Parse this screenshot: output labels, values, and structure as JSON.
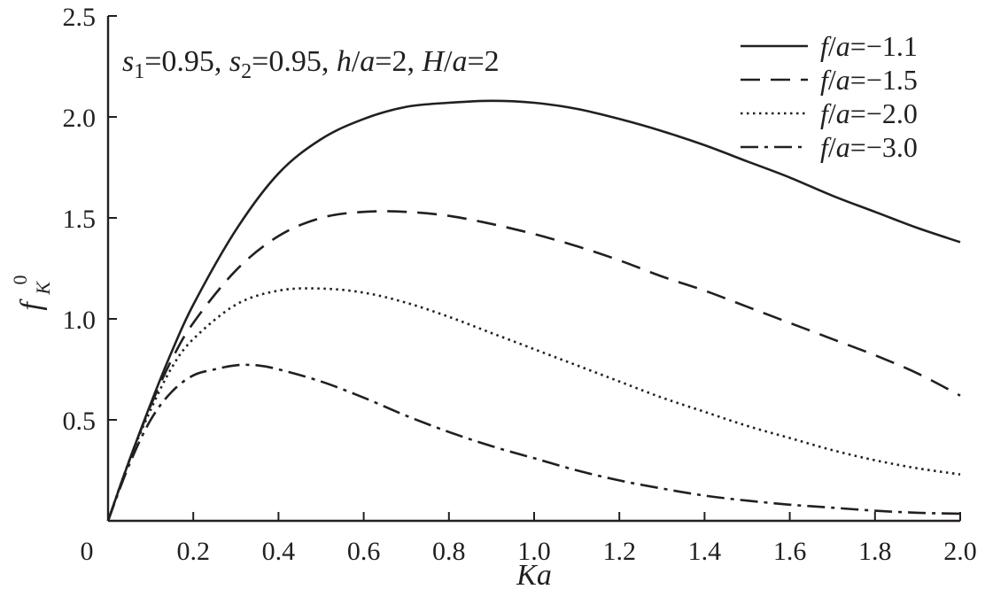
{
  "chart_data": {
    "type": "line",
    "xlabel": "Ka",
    "ylabel_main": "f",
    "ylabel_sub": "K",
    "ylabel_sup": "0",
    "annotation": "s1=0.95, s2=0.95, h/a=2, H/a=2",
    "annotation_parts": {
      "s1_main": "s",
      "s1_sub": "1",
      "s1_val": "=0.95, ",
      "s2_main": "s",
      "s2_sub": "2",
      "s2_val": "=0.95, ",
      "h": "h",
      "h_slash": "/",
      "h_a": "a",
      "h_val": "=2, ",
      "H": "H",
      "H_slash": "/",
      "H_a": "a",
      "H_val": "=2"
    },
    "xlim": [
      0,
      2.0
    ],
    "ylim": [
      0,
      2.5
    ],
    "x_ticks": [
      0,
      0.2,
      0.4,
      0.6,
      0.8,
      1.0,
      1.2,
      1.4,
      1.6,
      1.8,
      2.0
    ],
    "x_tick_labels": [
      "0",
      "0.2",
      "0.4",
      "0.6",
      "0.8",
      "1.0",
      "1.2",
      "1.4",
      "1.6",
      "1.8",
      "2.0"
    ],
    "y_ticks": [
      0.5,
      1.0,
      1.5,
      2.0,
      2.5
    ],
    "y_tick_labels": [
      "0.5",
      "1.0",
      "1.5",
      "2.0",
      "2.5"
    ],
    "grid": false,
    "legend_position": "top-right",
    "series": [
      {
        "name": "f/a=−1.1",
        "legend_f": "f",
        "legend_a": "a",
        "legend_val": "=−1.1",
        "dash": "solid",
        "x": [
          0,
          0.05,
          0.1,
          0.15,
          0.2,
          0.3,
          0.4,
          0.5,
          0.6,
          0.7,
          0.8,
          0.9,
          1.0,
          1.1,
          1.2,
          1.3,
          1.4,
          1.5,
          1.6,
          1.7,
          1.8,
          1.9,
          2.0
        ],
        "y": [
          0,
          0.3,
          0.58,
          0.84,
          1.07,
          1.44,
          1.72,
          1.89,
          1.99,
          2.05,
          2.07,
          2.08,
          2.07,
          2.04,
          1.99,
          1.93,
          1.86,
          1.78,
          1.7,
          1.61,
          1.53,
          1.45,
          1.38
        ]
      },
      {
        "name": "f/a=−1.5",
        "legend_f": "f",
        "legend_a": "a",
        "legend_val": "=−1.5",
        "dash": "dashed",
        "x": [
          0,
          0.05,
          0.1,
          0.15,
          0.2,
          0.3,
          0.4,
          0.5,
          0.6,
          0.7,
          0.8,
          0.9,
          1.0,
          1.1,
          1.2,
          1.3,
          1.4,
          1.5,
          1.6,
          1.7,
          1.8,
          1.9,
          2.0
        ],
        "y": [
          0,
          0.3,
          0.57,
          0.8,
          0.98,
          1.24,
          1.41,
          1.5,
          1.53,
          1.53,
          1.51,
          1.47,
          1.42,
          1.36,
          1.29,
          1.21,
          1.14,
          1.06,
          0.98,
          0.9,
          0.82,
          0.73,
          0.62
        ]
      },
      {
        "name": "f/a=−2.0",
        "legend_f": "f",
        "legend_a": "a",
        "legend_val": "=−2.0",
        "dash": "dotted",
        "x": [
          0,
          0.05,
          0.1,
          0.15,
          0.2,
          0.3,
          0.4,
          0.5,
          0.6,
          0.7,
          0.8,
          0.9,
          1.0,
          1.1,
          1.2,
          1.3,
          1.4,
          1.5,
          1.6,
          1.7,
          1.8,
          1.9,
          2.0
        ],
        "y": [
          0,
          0.3,
          0.55,
          0.76,
          0.9,
          1.07,
          1.14,
          1.15,
          1.13,
          1.08,
          1.01,
          0.93,
          0.85,
          0.77,
          0.69,
          0.61,
          0.54,
          0.47,
          0.41,
          0.35,
          0.3,
          0.26,
          0.23
        ]
      },
      {
        "name": "f/a=−3.0",
        "legend_f": "f",
        "legend_a": "a",
        "legend_val": "=−3.0",
        "dash": "dashdot",
        "x": [
          0,
          0.05,
          0.1,
          0.15,
          0.2,
          0.25,
          0.3,
          0.35,
          0.4,
          0.5,
          0.6,
          0.7,
          0.8,
          0.9,
          1.0,
          1.1,
          1.2,
          1.3,
          1.4,
          1.5,
          1.6,
          1.7,
          1.8,
          1.9,
          2.0
        ],
        "y": [
          0,
          0.28,
          0.5,
          0.64,
          0.72,
          0.75,
          0.77,
          0.77,
          0.75,
          0.69,
          0.61,
          0.52,
          0.44,
          0.37,
          0.31,
          0.25,
          0.2,
          0.16,
          0.125,
          0.1,
          0.08,
          0.065,
          0.05,
          0.04,
          0.035
        ]
      }
    ]
  }
}
